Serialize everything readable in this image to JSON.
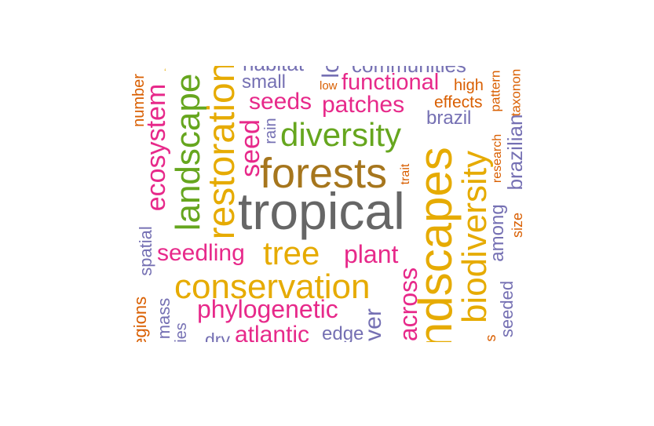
{
  "palette": {
    "gray": "#666666",
    "brown": "#a6761d",
    "orange": "#e6ab02",
    "green": "#66a61e",
    "pink": "#e7298a",
    "purple": "#7570b3",
    "rust": "#d95f02"
  },
  "words": {
    "tropical": "tropical",
    "forests": "forests",
    "conservation": "conservation",
    "landscapes": "landscapes",
    "restoration": "restoration",
    "landscape": "landscape",
    "biodiversity": "biodiversity",
    "diversity": "diversity",
    "tree": "tree",
    "ecosystem": "ecosystem",
    "seed": "seed",
    "seedling": "seedling",
    "plant": "plant",
    "phylogenetic": "phylogenetic",
    "functional": "functional",
    "patches": "patches",
    "seeds": "seeds",
    "atlantic": "atlantic",
    "habitat": "habitat",
    "communities": "communities",
    "across": "across",
    "brazil": "brazil",
    "brazilian": "brazilian",
    "small": "small",
    "edge": "edge",
    "effects": "effects",
    "high": "high",
    "among": "among",
    "number": "number",
    "spatial": "spatial",
    "mass": "mass",
    "regions": "regions",
    "species": "ies",
    "dry": "dry",
    "rain": "rain",
    "trait": "trait",
    "low": "low",
    "research": "research",
    "pattern": "pattern",
    "taxonomic": "taxonon",
    "size": "size",
    "seeded": "seeded",
    "fragment": "lo",
    "river": "ver",
    "extra_s": "s",
    "tick": "‘"
  }
}
